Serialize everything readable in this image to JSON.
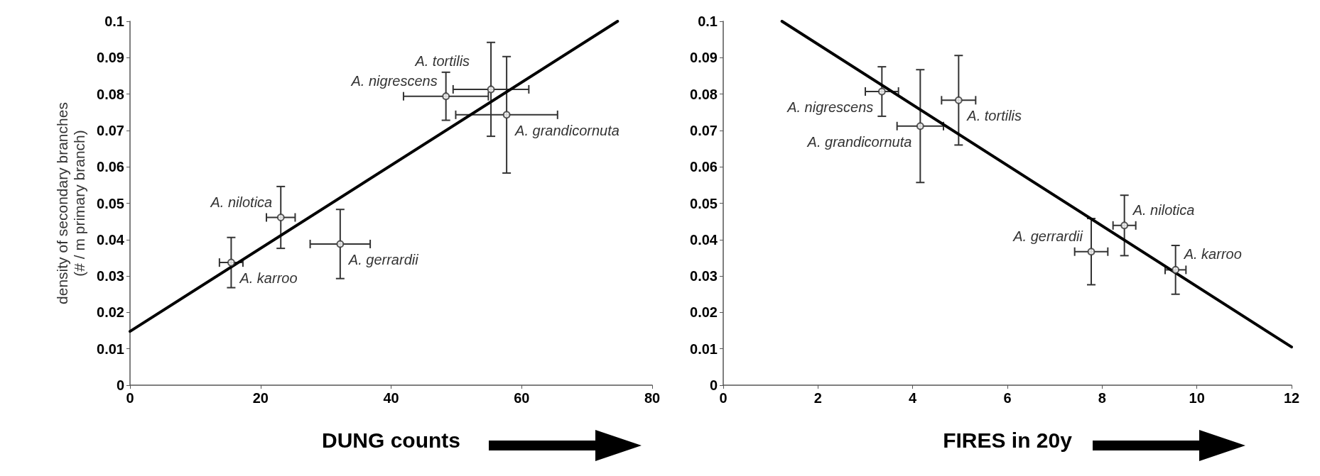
{
  "chart_data": [
    {
      "type": "scatter",
      "xlabel": "DUNG counts",
      "ylabel": "density of secondary branches\n(# / m primary branch)",
      "xlim": [
        0,
        80
      ],
      "xticks": [
        0,
        20,
        40,
        60,
        80
      ],
      "ylim": [
        0,
        0.1
      ],
      "yticks": [
        0,
        0.01,
        0.02,
        0.03,
        0.04,
        0.05,
        0.06,
        0.07,
        0.08,
        0.09,
        0.1
      ],
      "grid": false,
      "series": [
        {
          "marker": "circle",
          "color": "#333333",
          "x": [
            15.5,
            23.1,
            32.2,
            48.4,
            55.3,
            57.7
          ],
          "values": [
            0.0337,
            0.0461,
            0.0388,
            0.0794,
            0.0813,
            0.0743
          ],
          "errors": [
            0.0069,
            0.0085,
            0.0095,
            0.0066,
            0.0129,
            0.016
          ],
          "xerrors": [
            1.8,
            2.2,
            4.6,
            6.5,
            5.8,
            7.8
          ]
        },
        {
          "type": "line",
          "marker": "none",
          "color": "#000000",
          "line_style": "solid",
          "x": [
            0,
            74.7
          ],
          "values": [
            0.0148,
            0.1
          ]
        }
      ],
      "annotations": [
        {
          "text": "A. karroo",
          "x": 15.5,
          "y": 0.0337
        },
        {
          "text": "A. nilotica",
          "x": 23.1,
          "y": 0.0461
        },
        {
          "text": "A. gerrardii",
          "x": 32.2,
          "y": 0.0388
        },
        {
          "text": "A. nigrescens",
          "x": 48.4,
          "y": 0.0794
        },
        {
          "text": "A. tortilis",
          "x": 55.3,
          "y": 0.0813
        },
        {
          "text": "A. grandicornuta",
          "x": 57.7,
          "y": 0.0743
        }
      ]
    },
    {
      "type": "scatter",
      "xlabel": "FIRES in 20y",
      "xlim": [
        0,
        12
      ],
      "xticks": [
        0,
        2,
        4,
        6,
        8,
        10,
        12
      ],
      "ylim": [
        0,
        0.1
      ],
      "yticks": [
        0,
        0.01,
        0.02,
        0.03,
        0.04,
        0.05,
        0.06,
        0.07,
        0.08,
        0.09,
        0.1
      ],
      "grid": false,
      "series": [
        {
          "marker": "circle",
          "color": "#333333",
          "x": [
            3.35,
            4.16,
            4.97,
            7.77,
            8.47,
            9.55
          ],
          "values": [
            0.0807,
            0.0712,
            0.0783,
            0.0367,
            0.0439,
            0.0317
          ],
          "errors": [
            0.0068,
            0.0155,
            0.0123,
            0.0091,
            0.0083,
            0.0067
          ],
          "xerrors": [
            0.35,
            0.49,
            0.36,
            0.35,
            0.24,
            0.22
          ]
        },
        {
          "type": "line",
          "marker": "none",
          "color": "#000000",
          "line_style": "solid",
          "x": [
            1.24,
            12
          ],
          "values": [
            0.1,
            0.0105
          ]
        }
      ],
      "annotations": [
        {
          "text": "A. nigrescens",
          "x": 3.35,
          "y": 0.0807
        },
        {
          "text": "A. grandicornuta",
          "x": 4.16,
          "y": 0.0712
        },
        {
          "text": "A. tortilis",
          "x": 4.97,
          "y": 0.0783
        },
        {
          "text": "A. gerrardii",
          "x": 7.77,
          "y": 0.0367
        },
        {
          "text": "A. nilotica",
          "x": 8.47,
          "y": 0.0439
        },
        {
          "text": "A. karroo",
          "x": 9.55,
          "y": 0.0317
        }
      ]
    }
  ]
}
